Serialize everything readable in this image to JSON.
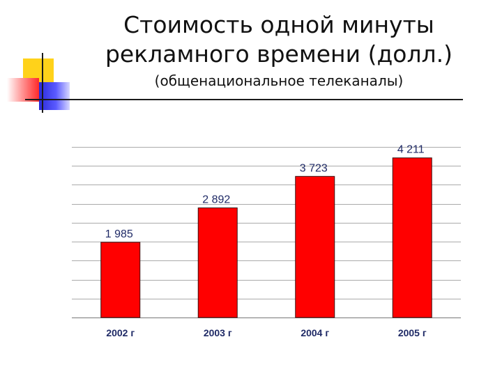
{
  "title": {
    "line1": "Стоимость одной минуты",
    "line2": "рекламного времени (долл.)",
    "subtitle": "(общенациональное телеканалы)"
  },
  "colors": {
    "bar": "#ff0000",
    "bar_stroke": "#3a1010",
    "grid": "#aaaaaa",
    "label": "#1f2a66"
  },
  "chart_data": {
    "type": "bar",
    "categories": [
      "2002 г",
      "2003 г",
      "2004 г",
      "2005 г"
    ],
    "values": [
      1985,
      2892,
      3723,
      4211
    ],
    "value_labels": [
      "1 985",
      "2 892",
      "3 723",
      "4 211"
    ],
    "ylim": [
      0,
      4500
    ],
    "grid": true,
    "title": "",
    "xlabel": "",
    "ylabel": ""
  }
}
